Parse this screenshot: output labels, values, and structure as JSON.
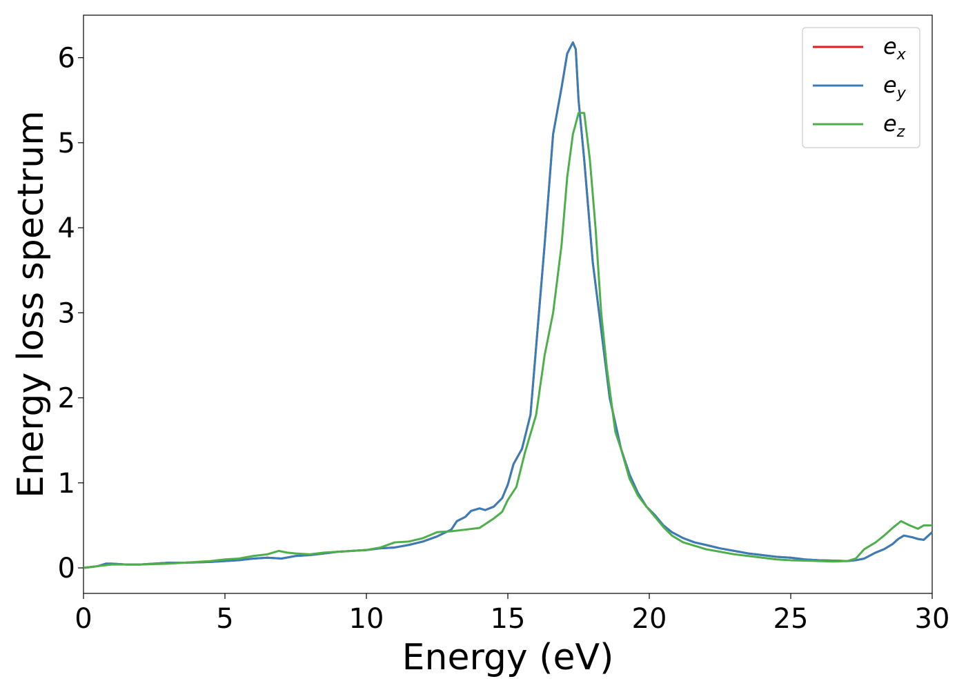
{
  "chart_data": {
    "type": "line",
    "xlabel": "Energy (eV)",
    "ylabel": "Energy loss spectrum",
    "xlim": [
      0,
      30
    ],
    "ylim": [
      -0.3,
      6.5
    ],
    "xticks": [
      0,
      5,
      10,
      15,
      20,
      25,
      30
    ],
    "xtick_labels": [
      "0",
      "5",
      "10",
      "15",
      "20",
      "25",
      "30"
    ],
    "yticks": [
      0,
      1,
      2,
      3,
      4,
      5,
      6
    ],
    "ytick_labels": [
      "0",
      "1",
      "2",
      "3",
      "4",
      "5",
      "6"
    ],
    "grid": false,
    "legend_position": "top-right",
    "colors": {
      "ex": "#e41a1c",
      "ey": "#377eb8",
      "ez": "#4daf4a"
    },
    "series": [
      {
        "name": "e_x",
        "legend_base": "e",
        "legend_sub": "x",
        "color": "#e41a1c",
        "x": [
          0,
          0.5,
          0.8,
          1.0,
          1.5,
          2,
          2.5,
          3,
          3.5,
          4,
          4.5,
          5,
          5.5,
          6,
          6.5,
          7,
          7.5,
          8,
          8.5,
          9,
          9.5,
          10,
          10.5,
          11,
          11.5,
          12,
          12.5,
          13,
          13.2,
          13.5,
          13.7,
          14,
          14.2,
          14.5,
          14.8,
          15,
          15.2,
          15.5,
          15.8,
          16,
          16.3,
          16.6,
          16.9,
          17.1,
          17.3,
          17.4,
          17.5,
          17.7,
          18,
          18.3,
          18.6,
          19,
          19.3,
          19.6,
          19.9,
          20.2,
          20.5,
          20.8,
          21.2,
          21.6,
          22,
          22.5,
          23,
          23.5,
          24,
          24.5,
          25,
          25.5,
          26,
          26.5,
          27,
          27.3,
          27.6,
          28,
          28.3,
          28.6,
          28.8,
          29,
          29.3,
          29.5,
          29.7,
          30
        ],
        "y": [
          0.0,
          0.02,
          0.05,
          0.05,
          0.04,
          0.04,
          0.05,
          0.06,
          0.06,
          0.065,
          0.07,
          0.08,
          0.09,
          0.11,
          0.12,
          0.11,
          0.14,
          0.15,
          0.17,
          0.19,
          0.2,
          0.21,
          0.23,
          0.24,
          0.27,
          0.31,
          0.37,
          0.45,
          0.55,
          0.6,
          0.67,
          0.7,
          0.68,
          0.72,
          0.82,
          0.98,
          1.22,
          1.4,
          1.8,
          2.6,
          3.8,
          5.1,
          5.65,
          6.05,
          6.18,
          6.1,
          5.5,
          4.8,
          3.6,
          2.8,
          2.0,
          1.4,
          1.1,
          0.88,
          0.72,
          0.62,
          0.5,
          0.42,
          0.35,
          0.3,
          0.27,
          0.23,
          0.2,
          0.17,
          0.15,
          0.13,
          0.12,
          0.1,
          0.09,
          0.085,
          0.08,
          0.09,
          0.11,
          0.18,
          0.22,
          0.28,
          0.34,
          0.38,
          0.36,
          0.34,
          0.33,
          0.42
        ]
      },
      {
        "name": "e_y",
        "legend_base": "e",
        "legend_sub": "y",
        "color": "#377eb8",
        "x": [
          0,
          0.5,
          0.8,
          1.0,
          1.5,
          2,
          2.5,
          3,
          3.5,
          4,
          4.5,
          5,
          5.5,
          6,
          6.5,
          7,
          7.5,
          8,
          8.5,
          9,
          9.5,
          10,
          10.5,
          11,
          11.5,
          12,
          12.5,
          13,
          13.2,
          13.5,
          13.7,
          14,
          14.2,
          14.5,
          14.8,
          15,
          15.2,
          15.5,
          15.8,
          16,
          16.3,
          16.6,
          16.9,
          17.1,
          17.3,
          17.4,
          17.5,
          17.7,
          18,
          18.3,
          18.6,
          19,
          19.3,
          19.6,
          19.9,
          20.2,
          20.5,
          20.8,
          21.2,
          21.6,
          22,
          22.5,
          23,
          23.5,
          24,
          24.5,
          25,
          25.5,
          26,
          26.5,
          27,
          27.3,
          27.6,
          28,
          28.3,
          28.6,
          28.8,
          29,
          29.3,
          29.5,
          29.7,
          30
        ],
        "y": [
          0.0,
          0.02,
          0.05,
          0.05,
          0.04,
          0.04,
          0.05,
          0.06,
          0.06,
          0.065,
          0.07,
          0.08,
          0.09,
          0.11,
          0.12,
          0.11,
          0.14,
          0.15,
          0.17,
          0.19,
          0.2,
          0.21,
          0.23,
          0.24,
          0.27,
          0.31,
          0.37,
          0.45,
          0.55,
          0.6,
          0.67,
          0.7,
          0.68,
          0.72,
          0.82,
          0.98,
          1.22,
          1.4,
          1.8,
          2.6,
          3.8,
          5.1,
          5.65,
          6.05,
          6.18,
          6.1,
          5.5,
          4.8,
          3.6,
          2.8,
          2.0,
          1.4,
          1.1,
          0.88,
          0.72,
          0.62,
          0.5,
          0.42,
          0.35,
          0.3,
          0.27,
          0.23,
          0.2,
          0.17,
          0.15,
          0.13,
          0.12,
          0.1,
          0.09,
          0.085,
          0.08,
          0.09,
          0.11,
          0.18,
          0.22,
          0.28,
          0.34,
          0.38,
          0.36,
          0.34,
          0.33,
          0.42
        ]
      },
      {
        "name": "e_z",
        "legend_base": "e",
        "legend_sub": "z",
        "color": "#4daf4a",
        "x": [
          0,
          0.5,
          1,
          1.5,
          2,
          2.5,
          3,
          3.5,
          4,
          4.5,
          5,
          5.5,
          6,
          6.5,
          6.9,
          7.2,
          7.5,
          8,
          8.5,
          9,
          9.5,
          10,
          10.5,
          11,
          11.5,
          12,
          12.5,
          13,
          13.5,
          14,
          14.5,
          14.8,
          15,
          15.3,
          15.6,
          16,
          16.3,
          16.6,
          16.9,
          17.1,
          17.3,
          17.5,
          17.7,
          17.9,
          18.1,
          18.3,
          18.5,
          18.8,
          19,
          19.3,
          19.6,
          19.9,
          20.2,
          20.5,
          20.8,
          21.2,
          21.6,
          22,
          22.5,
          23,
          23.5,
          24,
          24.5,
          25,
          25.5,
          26,
          26.5,
          27,
          27.3,
          27.6,
          28,
          28.3,
          28.6,
          28.9,
          29.2,
          29.5,
          29.7,
          30
        ],
        "y": [
          0.0,
          0.02,
          0.04,
          0.04,
          0.04,
          0.045,
          0.05,
          0.06,
          0.07,
          0.08,
          0.1,
          0.11,
          0.14,
          0.16,
          0.2,
          0.18,
          0.17,
          0.16,
          0.18,
          0.19,
          0.2,
          0.21,
          0.24,
          0.3,
          0.31,
          0.35,
          0.42,
          0.43,
          0.45,
          0.47,
          0.58,
          0.66,
          0.8,
          0.95,
          1.35,
          1.8,
          2.5,
          3.0,
          3.8,
          4.6,
          5.1,
          5.35,
          5.35,
          4.8,
          4.0,
          3.0,
          2.35,
          1.6,
          1.4,
          1.05,
          0.85,
          0.72,
          0.6,
          0.48,
          0.38,
          0.3,
          0.26,
          0.22,
          0.19,
          0.16,
          0.14,
          0.12,
          0.1,
          0.09,
          0.085,
          0.08,
          0.075,
          0.08,
          0.11,
          0.22,
          0.3,
          0.38,
          0.47,
          0.55,
          0.5,
          0.46,
          0.5,
          0.5
        ]
      }
    ]
  }
}
